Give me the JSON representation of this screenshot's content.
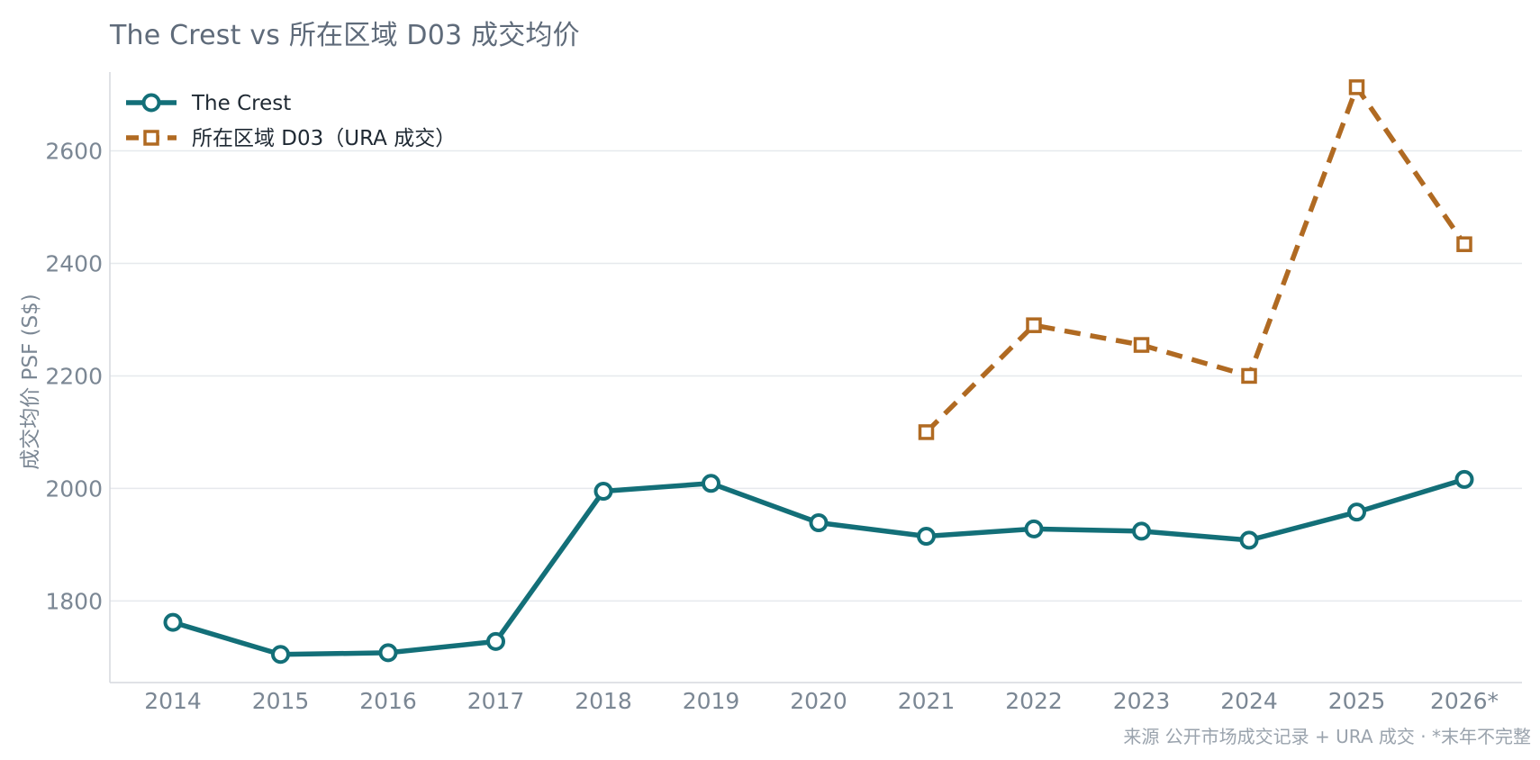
{
  "chart_data": {
    "type": "line",
    "title": "The Crest vs 所在区域 D03 成交均价",
    "xlabel": "",
    "ylabel": "成交均价 PSF (S$)",
    "categories": [
      "2014",
      "2015",
      "2016",
      "2017",
      "2018",
      "2019",
      "2020",
      "2021",
      "2022",
      "2023",
      "2024",
      "2025",
      "2026*"
    ],
    "ylim": [
      1655,
      2740
    ],
    "yticks": [
      1800,
      2000,
      2200,
      2400,
      2600
    ],
    "grid": "horizontal",
    "legend_position": "top-left",
    "series": [
      {
        "name": "The Crest",
        "color": "#136f78",
        "line_style": "solid",
        "marker": "circle",
        "values": [
          1762,
          1705,
          1708,
          1728,
          1995,
          2009,
          1939,
          1915,
          1928,
          1924,
          1908,
          1958,
          2016
        ]
      },
      {
        "name": "所在区域 D03（URA 成交）",
        "color": "#b06a22",
        "line_style": "dashed",
        "marker": "square",
        "values": [
          null,
          null,
          null,
          null,
          null,
          null,
          null,
          2100,
          2290,
          2255,
          2200,
          2713,
          2434
        ]
      }
    ],
    "source_note": "来源 公开市场成交记录 + URA 成交 · *末年不完整"
  }
}
